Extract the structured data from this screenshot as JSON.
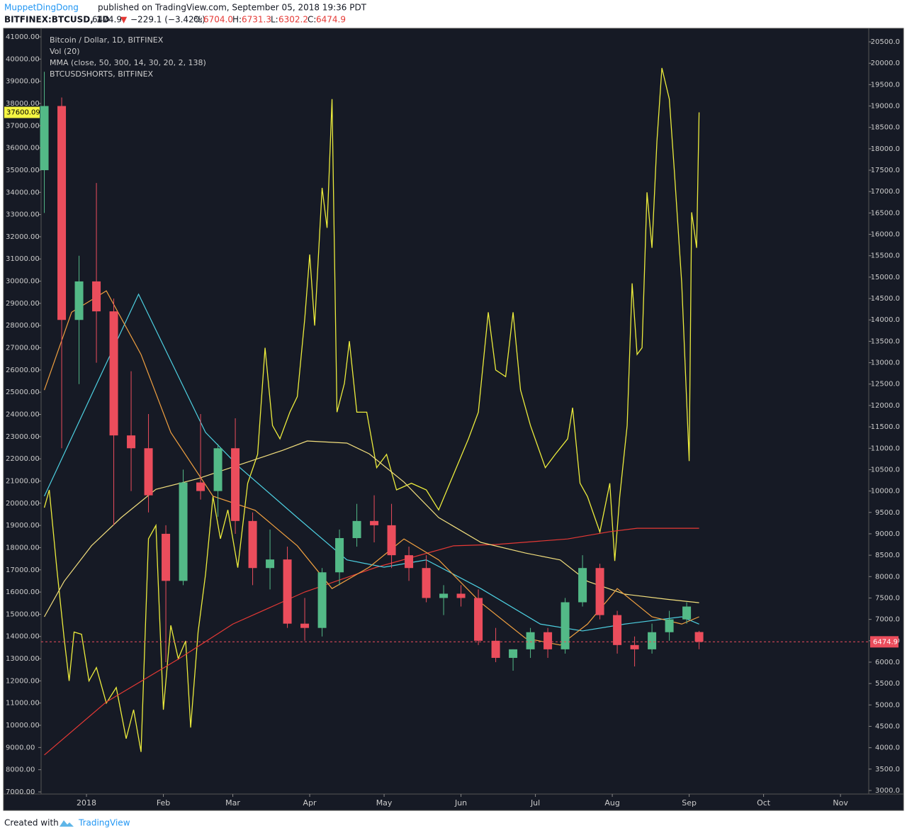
{
  "header": {
    "author": "MuppetDingDong",
    "published": "published on TradingView.com, September 05, 2018 19:36 PDT",
    "symbol": "BITFINEX:BTCUSD, 1D",
    "last": "6474.9",
    "arrow": "▼",
    "change": "−229.1 (−3.42%)",
    "o_label": "O:",
    "o": "6704.0",
    "h_label": "H:",
    "h": "6731.3",
    "l_label": "L:",
    "l": "6302.2",
    "c_label": "C:",
    "c": "6474.9"
  },
  "footer": {
    "created": "Created with",
    "brand": "TradingView"
  },
  "chart_data": {
    "type": "candlestick",
    "legend": [
      "Bitcoin / Dollar, 1D, BITFINEX",
      "Vol (20)",
      "MMA (close, 50, 300, 14, 30, 20, 2, 138)"
    ],
    "up_color": "#53b987",
    "down_color": "#eb4d5c",
    "x": [
      -17,
      -10,
      -3,
      4,
      11,
      18,
      25,
      32,
      39,
      46,
      53,
      60,
      67,
      74,
      81,
      88,
      95,
      102,
      109,
      116,
      123,
      130,
      137,
      144,
      151,
      158,
      165,
      172,
      179,
      186,
      193,
      200,
      207,
      214,
      221,
      228,
      235,
      242,
      247
    ],
    "open": [
      17500,
      19000,
      14000,
      14900,
      14200,
      11300,
      11000,
      9000,
      7900,
      10200,
      10000,
      11000,
      9300,
      8200,
      8400,
      6900,
      6800,
      8100,
      8900,
      9300,
      9200,
      8500,
      8200,
      7500,
      7600,
      7500,
      6500,
      6100,
      6300,
      6700,
      6300,
      7400,
      8200,
      7100,
      6400,
      6300,
      6700,
      7000,
      6704
    ],
    "high": [
      19800,
      19200,
      15500,
      17200,
      14500,
      12800,
      11800,
      9200,
      10500,
      11800,
      11100,
      11700,
      9500,
      9100,
      8700,
      7500,
      8200,
      9100,
      9700,
      9900,
      9700,
      8700,
      8500,
      7800,
      7800,
      7700,
      6800,
      6300,
      6800,
      6800,
      7500,
      8500,
      8300,
      7200,
      6600,
      6900,
      7200,
      7400,
      6731.3
    ],
    "low": [
      16500,
      11000,
      12500,
      13000,
      9200,
      10000,
      9500,
      6000,
      7800,
      9800,
      9400,
      9000,
      7800,
      7700,
      6800,
      6500,
      6600,
      7800,
      8700,
      8800,
      8200,
      7900,
      7400,
      7100,
      7300,
      6400,
      6000,
      5800,
      6100,
      6100,
      6200,
      7300,
      7000,
      6200,
      5900,
      6200,
      6500,
      6900,
      6302.2
    ],
    "close": [
      19000,
      14000,
      14900,
      14200,
      11300,
      11000,
      9900,
      7900,
      10200,
      10000,
      11000,
      9300,
      8200,
      8400,
      6900,
      6800,
      8100,
      8900,
      9300,
      9200,
      8500,
      8200,
      7500,
      7600,
      7500,
      6500,
      6100,
      6300,
      6700,
      6300,
      7400,
      8200,
      7100,
      6400,
      6300,
      6700,
      7000,
      7300,
      6474.9
    ],
    "lines": [
      {
        "name": "BTCUSDSHORTS, BITFINEX",
        "color": "#ecec3c",
        "axis": "y",
        "x": [
          -17,
          -15,
          -12,
          -9,
          -7,
          -5,
          -2,
          1,
          4,
          8,
          12,
          16,
          19,
          22,
          25,
          28,
          31,
          34,
          37,
          40,
          42,
          45,
          48,
          51,
          54,
          57,
          61,
          65,
          69,
          72,
          75,
          78,
          82,
          85,
          88,
          90,
          92,
          95,
          97,
          99,
          101,
          104,
          106,
          109,
          113,
          117,
          121,
          125,
          131,
          137,
          142,
          148,
          154,
          158,
          162,
          165,
          169,
          172,
          175,
          179,
          185,
          189,
          194,
          196,
          199,
          202,
          207,
          211,
          213,
          215,
          218,
          220,
          222,
          224,
          226,
          228,
          230,
          232,
          235,
          237,
          240,
          243,
          244,
          246,
          247
        ],
        "values": [
          19800,
          20600,
          17100,
          13900,
          12000,
          14200,
          14100,
          12000,
          12600,
          11000,
          11700,
          9400,
          10700,
          8800,
          18400,
          19000,
          10700,
          14500,
          13000,
          13800,
          9900,
          14200,
          16800,
          20300,
          18400,
          19700,
          17100,
          20900,
          22200,
          27000,
          23500,
          22900,
          24100,
          24800,
          28300,
          31200,
          28000,
          34200,
          32400,
          38200,
          24100,
          25400,
          27300,
          24100,
          24100,
          21600,
          22200,
          20600,
          20900,
          20600,
          19700,
          21300,
          22900,
          24100,
          28600,
          26000,
          25700,
          28600,
          25100,
          23500,
          21600,
          22200,
          22900,
          24300,
          20900,
          20300,
          18700,
          20900,
          17400,
          20300,
          23500,
          29900,
          26700,
          27000,
          34000,
          31500,
          36300,
          39600,
          38200,
          35000,
          29900,
          21900,
          33100,
          31500,
          37600.09
        ]
      },
      {
        "color": "#e53935",
        "axis": "y2",
        "x": [
          -17,
          8,
          37,
          59,
          88,
          117,
          148,
          165,
          194,
          211,
          222,
          247
        ],
        "values": [
          3830,
          5070,
          6070,
          6890,
          7640,
          8220,
          8720,
          8750,
          8880,
          9050,
          9130,
          9130
        ]
      },
      {
        "color": "#f3df7d",
        "axis": "y2",
        "x": [
          -17,
          -9,
          2,
          14,
          28,
          45,
          62,
          79,
          89,
          105,
          114,
          128,
          142,
          159,
          177,
          191,
          202,
          217,
          234,
          247
        ],
        "values": [
          7060,
          7890,
          8720,
          9380,
          10040,
          10290,
          10620,
          10950,
          11170,
          11120,
          10870,
          10210,
          9380,
          8800,
          8550,
          8390,
          7890,
          7590,
          7470,
          7390
        ]
      },
      {
        "color": "#4dd0e1",
        "axis": "y2",
        "x": [
          -17,
          21,
          48,
          62,
          85,
          105,
          120,
          137,
          159,
          183,
          200,
          217,
          240,
          247
        ],
        "values": [
          9880,
          14600,
          11370,
          10540,
          9380,
          8390,
          8220,
          8390,
          7720,
          6890,
          6730,
          6890,
          7060,
          6890
        ]
      },
      {
        "color": "#f0a040",
        "axis": "y2",
        "x": [
          -17,
          -6,
          8,
          22,
          34,
          51,
          68,
          85,
          99,
          114,
          128,
          142,
          159,
          177,
          191,
          202,
          214,
          228,
          240,
          247
        ],
        "values": [
          12360,
          14180,
          14680,
          13190,
          11370,
          9880,
          9550,
          8720,
          7720,
          8220,
          8880,
          8390,
          7390,
          6560,
          6400,
          6890,
          7720,
          7060,
          6890,
          7060
        ]
      }
    ],
    "xlim": [
      -18.3,
      315.4
    ],
    "xticks": [
      {
        "value": 0,
        "label": "2018"
      },
      {
        "value": 31,
        "label": "Feb"
      },
      {
        "value": 59,
        "label": "Mar"
      },
      {
        "value": 90,
        "label": "Apr"
      },
      {
        "value": 120,
        "label": "May"
      },
      {
        "value": 151,
        "label": "Jun"
      },
      {
        "value": 181,
        "label": "Jul"
      },
      {
        "value": 212,
        "label": "Aug"
      },
      {
        "value": 243,
        "label": "Sep"
      },
      {
        "value": 273,
        "label": "Oct"
      },
      {
        "value": 304,
        "label": "Nov"
      }
    ],
    "ylim": [
      6904,
      41320
    ],
    "yticks": [
      {
        "value": 7000,
        "label": "7000.00"
      },
      {
        "value": 8000,
        "label": "8000.00"
      },
      {
        "value": 9000,
        "label": "9000.00"
      },
      {
        "value": 10000,
        "label": "10000.00"
      },
      {
        "value": 11000,
        "label": "11000.00"
      },
      {
        "value": 12000,
        "label": "12000.00"
      },
      {
        "value": 13000,
        "label": "13000.00"
      },
      {
        "value": 14000,
        "label": "14000.00"
      },
      {
        "value": 15000,
        "label": "15000.00"
      },
      {
        "value": 16000,
        "label": "16000.00"
      },
      {
        "value": 17000,
        "label": "17000.00"
      },
      {
        "value": 18000,
        "label": "18000.00"
      },
      {
        "value": 19000,
        "label": "19000.00"
      },
      {
        "value": 20000,
        "label": "20000.00"
      },
      {
        "value": 21000,
        "label": "21000.00"
      },
      {
        "value": 22000,
        "label": "22000.00"
      },
      {
        "value": 23000,
        "label": "23000.00"
      },
      {
        "value": 24000,
        "label": "24000.00"
      },
      {
        "value": 25000,
        "label": "25000.00"
      },
      {
        "value": 26000,
        "label": "26000.00"
      },
      {
        "value": 27000,
        "label": "27000.00"
      },
      {
        "value": 28000,
        "label": "28000.00"
      },
      {
        "value": 29000,
        "label": "29000.00"
      },
      {
        "value": 30000,
        "label": "30000.00"
      },
      {
        "value": 31000,
        "label": "31000.00"
      },
      {
        "value": 32000,
        "label": "32000.00"
      },
      {
        "value": 33000,
        "label": "33000.00"
      },
      {
        "value": 34000,
        "label": "34000.00"
      },
      {
        "value": 35000,
        "label": "35000.00"
      },
      {
        "value": 36000,
        "label": "36000.00"
      },
      {
        "value": 37000,
        "label": "37000.00"
      },
      {
        "value": 38000,
        "label": "38000.00"
      },
      {
        "value": 39000,
        "label": "39000.00"
      },
      {
        "value": 40000,
        "label": "40000.00"
      },
      {
        "value": 41000,
        "label": "41000.00"
      }
    ],
    "y2lim": [
      2917,
      20782
    ],
    "y2ticks": [
      {
        "value": 3000,
        "label": "3000.0"
      },
      {
        "value": 3500,
        "label": "3500.0"
      },
      {
        "value": 4000,
        "label": "4000.0"
      },
      {
        "value": 4500,
        "label": "4500.0"
      },
      {
        "value": 5000,
        "label": "5000.0"
      },
      {
        "value": 5500,
        "label": "5500.0"
      },
      {
        "value": 6000,
        "label": "6000.0"
      },
      {
        "value": 6500,
        "label": "6500.0"
      },
      {
        "value": 7000,
        "label": "7000.0"
      },
      {
        "value": 7500,
        "label": "7500.0"
      },
      {
        "value": 8000,
        "label": "8000.0"
      },
      {
        "value": 8500,
        "label": "8500.0"
      },
      {
        "value": 9000,
        "label": "9000.0"
      },
      {
        "value": 9500,
        "label": "9500.0"
      },
      {
        "value": 10000,
        "label": "10000.0"
      },
      {
        "value": 10500,
        "label": "10500.0"
      },
      {
        "value": 11000,
        "label": "11000.0"
      },
      {
        "value": 11500,
        "label": "11500.0"
      },
      {
        "value": 12000,
        "label": "12000.0"
      },
      {
        "value": 12500,
        "label": "12500.0"
      },
      {
        "value": 13000,
        "label": "13000.0"
      },
      {
        "value": 13500,
        "label": "13500.0"
      },
      {
        "value": 14000,
        "label": "14000.0"
      },
      {
        "value": 14500,
        "label": "14500.0"
      },
      {
        "value": 15000,
        "label": "15000.0"
      },
      {
        "value": 15500,
        "label": "15500.0"
      },
      {
        "value": 16000,
        "label": "16000.0"
      },
      {
        "value": 16500,
        "label": "16500.0"
      },
      {
        "value": 17000,
        "label": "17000.0"
      },
      {
        "value": 17500,
        "label": "17500.0"
      },
      {
        "value": 18000,
        "label": "18000.0"
      },
      {
        "value": 18500,
        "label": "18500.0"
      },
      {
        "value": 19000,
        "label": "19000.0"
      },
      {
        "value": 19500,
        "label": "19500.0"
      },
      {
        "value": 20000,
        "label": "20000.0"
      },
      {
        "value": 20500,
        "label": "20500.0"
      }
    ],
    "grid": false
  }
}
